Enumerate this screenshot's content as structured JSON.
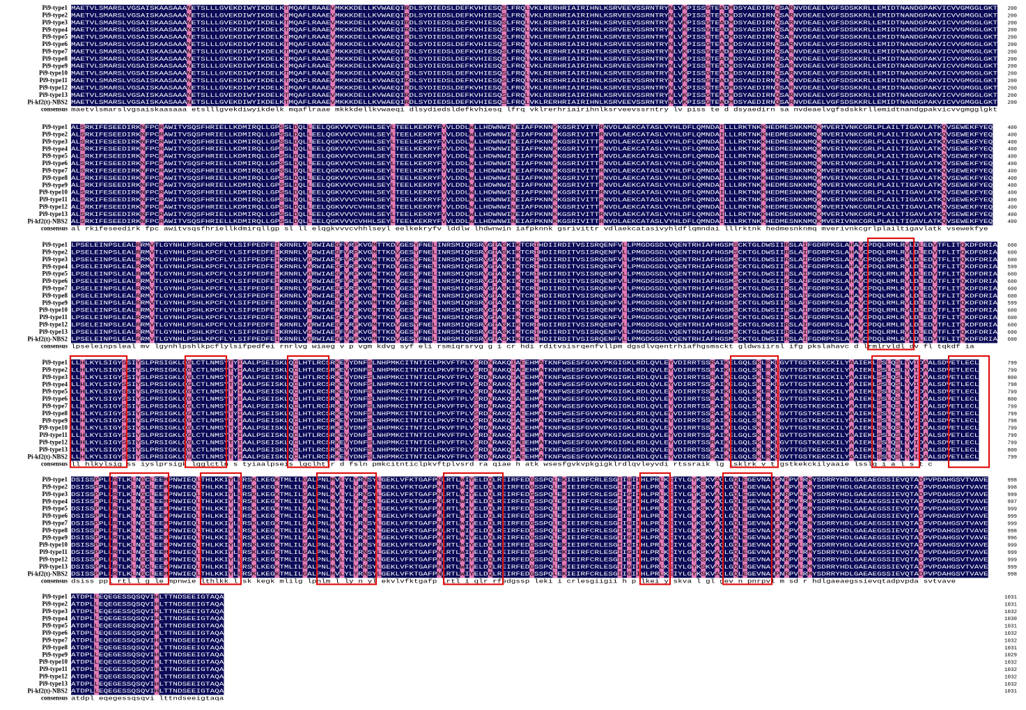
{
  "names": [
    "Pi9-type1",
    "Pi9-type2",
    "Pi9-type3",
    "Pi9-type4",
    "Pi9-type5",
    "Pi9-type6",
    "Pi9-type7",
    "Pi9-type8",
    "Pi9-type9",
    "Pi9-type10",
    "Pi9-type11",
    "Pi9-type12",
    "Pi9-type13",
    "Pi-kf2(t)-NBS2"
  ],
  "consensus_label": "consensus",
  "blocks": [
    {
      "sequence": "MAETVLSMARSLVGSAISKAASAAANETSLLLGVEKDIWYIKDELKTMQAFLRAAEVMKKKDELLKVWAEQIRDLSYDIEDSLDEFKVHIESQSLFRQLVKLRERHRIAIRIHNLKSRVEEVSSRNTRYNLVKPISSGTEADMDSYAEDIRNQSARNVDEAELVGFSDSKKRLLEMIDTNANDGPAKVICVVGMGGLGKT",
      "consensus": "maetvlsmarslvgsaiskaasaaa etslllgvekdiwyikdelk mqaflraae mkkkdellkvwaeqi dlsydiedsldefkvhiesq lfrq vklrerhriairihnlksrveevssrntry lv piss te d dsyaedirn sa nvdeaelvgfsdskkrllemidtnandgpakvicvvgmgglgkt",
      "ends": [
        200,
        200,
        200,
        200,
        200,
        200,
        200,
        200,
        200,
        200,
        200,
        200,
        200,
        200
      ]
    },
    {
      "sequence": "ALSRKIFESEEDIRKNFPCRAWITVSQSFHRIELLKDMIRQLLGPSSLDQLLEELQGKVVVCVHHLSEYLTEELKEKRYFVVLDDLWLLHDWNWINEIAFPKNNKKGSRIVITTRNVDLAEKCATASLVYHLDFLQMNDAILLLRKTNKKHEDMESNKNMQKMVERIVNKCGRLPLAILTIGAVLATKQVSEWEKFYEQ",
      "consensus": "al rkifeseedirk fpc awitvsqsfhriellkdmirqllgp sl ll elqgkvvvcvhhlseyl eelkekryfv lddlw lhdwnwin iafpknnk gsrivittr vdlaekcatasivyhldflqmndai lllrktnk hedmesnknmq mverivnkcgrlplailtigavlatk vsewekfye",
      "ends": [
        400,
        400,
        400,
        400,
        400,
        400,
        400,
        400,
        400,
        400,
        400,
        400,
        400,
        400
      ]
    },
    {
      "sequence": "LPSELEINPSLEALRRMVTLGYNHLPSHLKPCFLYLSIFPEDFEIKRNRLVGRWIAEGFVRPKVGMTTKDVGESYFNELINRSMIQRSRVGIAGKIKTCRIHDIIRDITVSISRQENFVLLPMGDGSDLVQENTRHIAFHGSMSCKTGLDWSIIRSLAIFGDRPKSLAHAVCPDQLRMLRVLDLEDVTFLITQKDFDRIA",
      "consensus": "lpseleinpsleal mv lgynhlpshlkpcflylsifpedfei rnrlvg wiaeg v p vgm kdvg syf eli rsmiqrsrvg g i cr hdi rditvsisrqenfvllpm dgsdlvqentrhiafhgsmsckt gldwsiirsl ifg pkslahavc d lrmlrvldl dv fl tqkdf ia",
      "ends": [
        600,
        600,
        600,
        599,
        600,
        600,
        600,
        600,
        599,
        600,
        600,
        600,
        600,
        600
      ]
    },
    {
      "sequence": "LLHLKYLSIGYSSIYSLPRSIGKLQGLCTLNMSYTYIAALPSEISKLQCLHTLRCSRKEVYDNFSLNHPMKCITNTICLPKVFTPLVSRDNRAKQIAEEHMATKNFWSESFGVKVPKGIGKLRDLQVLEYVDIRRTSSRAIKELGQLSKLRKLGVTTGSTKEKCKILYAAIEKLSSLQSLYVIDAALSDVETLECL",
      "consensus": "ll hlkylsig ss iyslprsigk lqglctln s tyiaalpseis lqclhtlr d fsln pmkcitnticlpkvftplvsrd ra qiae h atk wsesfgvkvpkgigklrdlqvleyvdi rtssraik lg lsklrk v t gstkekckilyaaie lsslq i a l s t c",
      "ends": [
        799,
        799,
        800,
        798,
        799,
        800,
        799,
        799,
        798,
        799,
        799,
        799,
        800,
        799
      ]
    },
    {
      "sequence": "DSISSPPLLRTLKLNGCLEEMPNWIEQLTHLKKIYLLRSKLKEGKTMLILGALPNLMVLYLYRNSYLGEKLVFKTGAFPNLRTLWIYELDQLREIRFEDGSSPQLEKIEIRFCRLESGIIGIIHLPRLKEIYLGYKSKVAQLGQLEGEVNAHPNRPVLRMYSDRRYHDLGAEAEGSSIEVQTADPVPDAHGSVTVAVE",
      "consensus": "dsiss ppl rtl l g le mpnwie lthlkk l sk kegk mlilg lpnlm l ly n yl ekvlvfktgafp lrtl i qlr rfedgssp leki i crlesgiigii h p lkei y skva l gl gev n pnrpvl m sd r hdlgaeaegssievqtadpvpda svtvave",
      "ends": [
        998,
        998,
        999,
        997,
        999,
        999,
        999,
        998,
        996,
        999,
        999,
        999,
        999,
        998
      ]
    },
    {
      "sequence": "ATDPLLEQEGESSQSQVIHLTTNDSEEIGTAQA",
      "consensus": "atdpl eqegessqsqvi lttndseeigtaqa",
      "ends": [
        1031,
        1031,
        1032,
        1030,
        1031,
        1032,
        1032,
        1031,
        1029,
        1032,
        1032,
        1032,
        1032,
        1031
      ]
    }
  ]
}
